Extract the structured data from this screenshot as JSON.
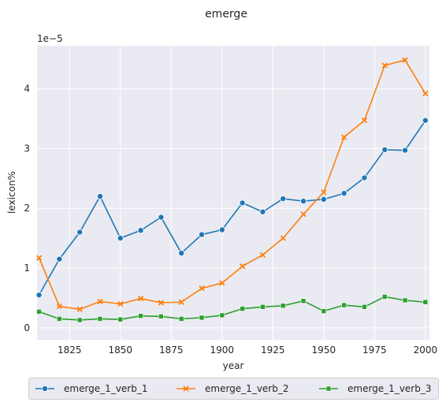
{
  "chart_data": {
    "type": "line",
    "title": "emerge",
    "xlabel": "year",
    "ylabel": "lexicon%",
    "y_scale_label": "1e−5",
    "xlim": [
      1809,
      2002
    ],
    "ylim": [
      -0.2,
      4.72
    ],
    "x_ticks": [
      1825,
      1850,
      1875,
      1900,
      1925,
      1950,
      1975,
      2000
    ],
    "y_ticks": [
      0,
      1,
      2,
      3,
      4
    ],
    "grid": true,
    "legend_position": "bottom",
    "x": [
      1810,
      1820,
      1830,
      1840,
      1850,
      1860,
      1870,
      1880,
      1890,
      1900,
      1910,
      1920,
      1930,
      1940,
      1950,
      1960,
      1970,
      1980,
      1990,
      2000
    ],
    "series": [
      {
        "name": "emerge_1_verb_1",
        "color": "#1f77b4",
        "marker": "circle",
        "values": [
          0.55,
          1.15,
          1.6,
          2.2,
          1.5,
          1.63,
          1.85,
          1.25,
          1.56,
          1.64,
          2.09,
          1.94,
          2.16,
          2.12,
          2.15,
          2.25,
          2.51,
          2.98,
          2.97,
          3.47
        ]
      },
      {
        "name": "emerge_1_verb_2",
        "color": "#ff7f0e",
        "marker": "x",
        "values": [
          1.17,
          0.36,
          0.31,
          0.44,
          0.4,
          0.49,
          0.42,
          0.43,
          0.66,
          0.75,
          1.03,
          1.22,
          1.5,
          1.9,
          2.27,
          3.19,
          3.47,
          4.39,
          4.48,
          3.92
        ]
      },
      {
        "name": "emerge_1_verb_3",
        "color": "#2ca02c",
        "marker": "square",
        "values": [
          0.27,
          0.15,
          0.13,
          0.15,
          0.14,
          0.2,
          0.19,
          0.15,
          0.17,
          0.21,
          0.32,
          0.35,
          0.37,
          0.45,
          0.28,
          0.38,
          0.35,
          0.52,
          0.46,
          0.43
        ]
      }
    ]
  }
}
